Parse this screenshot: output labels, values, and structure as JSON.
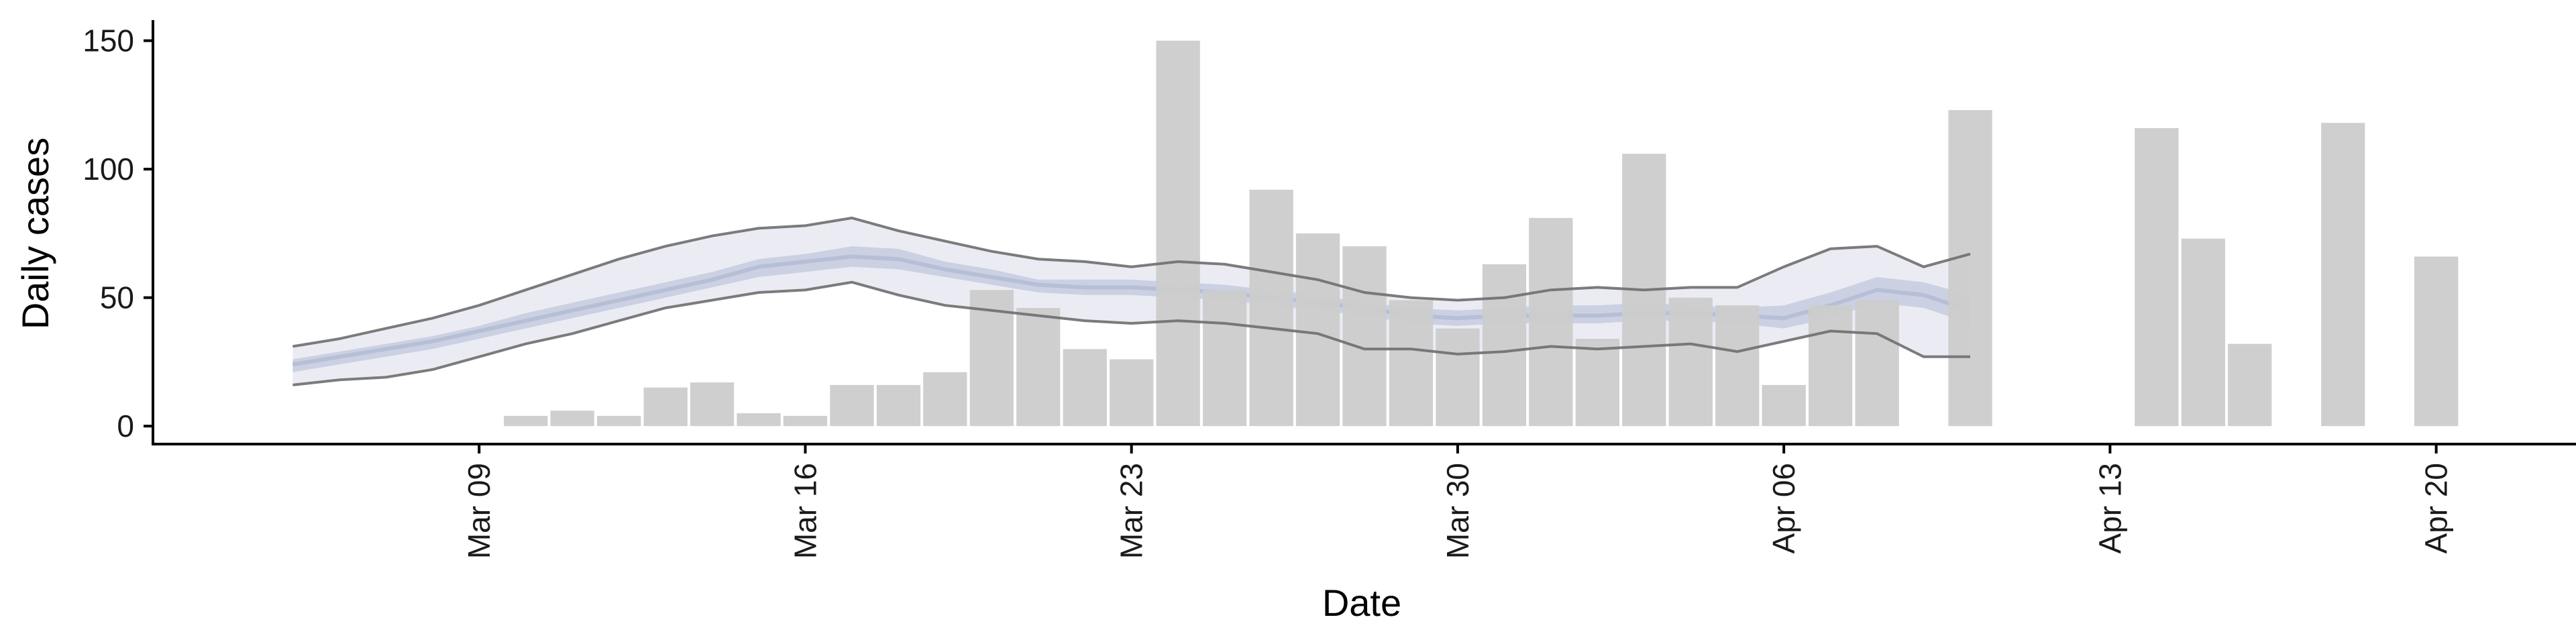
{
  "chart_data": {
    "type": "bar",
    "xlabel": "Date",
    "ylabel": "Daily cases",
    "ylim": [
      -7,
      158
    ],
    "x_date_range": [
      "2020-03-02",
      "2020-04-23"
    ],
    "y_ticks": [
      0,
      50,
      100,
      150
    ],
    "x_ticks": [
      {
        "date": "2020-03-09",
        "label": "Mar 09"
      },
      {
        "date": "2020-03-16",
        "label": "Mar 16"
      },
      {
        "date": "2020-03-23",
        "label": "Mar 23"
      },
      {
        "date": "2020-03-30",
        "label": "Mar 30"
      },
      {
        "date": "2020-04-06",
        "label": "Apr 06"
      },
      {
        "date": "2020-04-13",
        "label": "Apr 13"
      },
      {
        "date": "2020-04-20",
        "label": "Apr 20"
      }
    ],
    "grid": false,
    "legend": "none",
    "colors": {
      "bar": "#cccccc",
      "band_outer": "#e6e7f0",
      "band_inner": "#c6ccdf",
      "median": "#b6bfd6",
      "bound_line": "#6e6e6e",
      "axis": "#000000"
    },
    "bars": {
      "dates": [
        "2020-03-10",
        "2020-03-11",
        "2020-03-12",
        "2020-03-13",
        "2020-03-14",
        "2020-03-15",
        "2020-03-16",
        "2020-03-17",
        "2020-03-18",
        "2020-03-19",
        "2020-03-20",
        "2020-03-21",
        "2020-03-22",
        "2020-03-23",
        "2020-03-24",
        "2020-03-25",
        "2020-03-26",
        "2020-03-27",
        "2020-03-28",
        "2020-03-29",
        "2020-03-30",
        "2020-03-31",
        "2020-04-01",
        "2020-04-02",
        "2020-04-03",
        "2020-04-04",
        "2020-04-05",
        "2020-04-06",
        "2020-04-07",
        "2020-04-08",
        "2020-04-10",
        "2020-04-14",
        "2020-04-15",
        "2020-04-16",
        "2020-04-18",
        "2020-04-20"
      ],
      "values": [
        4,
        6,
        4,
        15,
        17,
        5,
        4,
        16,
        16,
        21,
        53,
        46,
        30,
        26,
        150,
        53,
        92,
        75,
        70,
        49,
        38,
        63,
        81,
        34,
        106,
        50,
        47,
        16,
        47,
        49,
        123,
        116,
        73,
        32,
        118,
        66
      ]
    },
    "band": {
      "dates": [
        "2020-03-05",
        "2020-03-06",
        "2020-03-07",
        "2020-03-08",
        "2020-03-09",
        "2020-03-10",
        "2020-03-11",
        "2020-03-12",
        "2020-03-13",
        "2020-03-14",
        "2020-03-15",
        "2020-03-16",
        "2020-03-17",
        "2020-03-18",
        "2020-03-19",
        "2020-03-20",
        "2020-03-21",
        "2020-03-22",
        "2020-03-23",
        "2020-03-24",
        "2020-03-25",
        "2020-03-26",
        "2020-03-27",
        "2020-03-28",
        "2020-03-29",
        "2020-03-30",
        "2020-03-31",
        "2020-04-01",
        "2020-04-02",
        "2020-04-03",
        "2020-04-04",
        "2020-04-05",
        "2020-04-06",
        "2020-04-07",
        "2020-04-08",
        "2020-04-09",
        "2020-04-10",
        "2020-04-11"
      ],
      "upper": [
        31,
        34,
        38,
        42,
        47,
        53,
        59,
        65,
        70,
        74,
        77,
        78,
        81,
        76,
        72,
        68,
        65,
        64,
        62,
        64,
        63,
        60,
        57,
        52,
        50,
        49,
        50,
        53,
        54,
        53,
        54,
        54,
        62,
        69,
        70,
        62,
        67,
        null
      ],
      "inner_upper": [
        26,
        29,
        32,
        35,
        39,
        44,
        48,
        52,
        56,
        60,
        65,
        67,
        70,
        69,
        64,
        61,
        57,
        57,
        57,
        56,
        55,
        53,
        51,
        48,
        46,
        45,
        46,
        47,
        47,
        48,
        47,
        46,
        47,
        52,
        58,
        56,
        51,
        null
      ],
      "median": [
        24,
        27,
        30,
        33,
        37,
        41,
        45,
        49,
        53,
        57,
        62,
        64,
        66,
        65,
        61,
        58,
        55,
        54,
        54,
        53,
        52,
        50,
        48,
        46,
        43,
        42,
        43,
        43,
        43,
        44,
        44,
        43,
        42,
        47,
        53,
        51,
        45,
        null
      ],
      "inner_lower": [
        21,
        24,
        27,
        30,
        34,
        38,
        42,
        46,
        50,
        54,
        58,
        60,
        62,
        61,
        58,
        55,
        52,
        51,
        51,
        50,
        49,
        47,
        45,
        43,
        40,
        39,
        40,
        40,
        40,
        41,
        41,
        40,
        38,
        42,
        48,
        46,
        40,
        null
      ],
      "lower": [
        16,
        18,
        19,
        22,
        27,
        32,
        36,
        41,
        46,
        49,
        52,
        53,
        56,
        51,
        47,
        45,
        43,
        41,
        40,
        41,
        40,
        38,
        36,
        30,
        30,
        28,
        29,
        31,
        30,
        31,
        32,
        29,
        33,
        37,
        36,
        27,
        27,
        null
      ]
    }
  }
}
